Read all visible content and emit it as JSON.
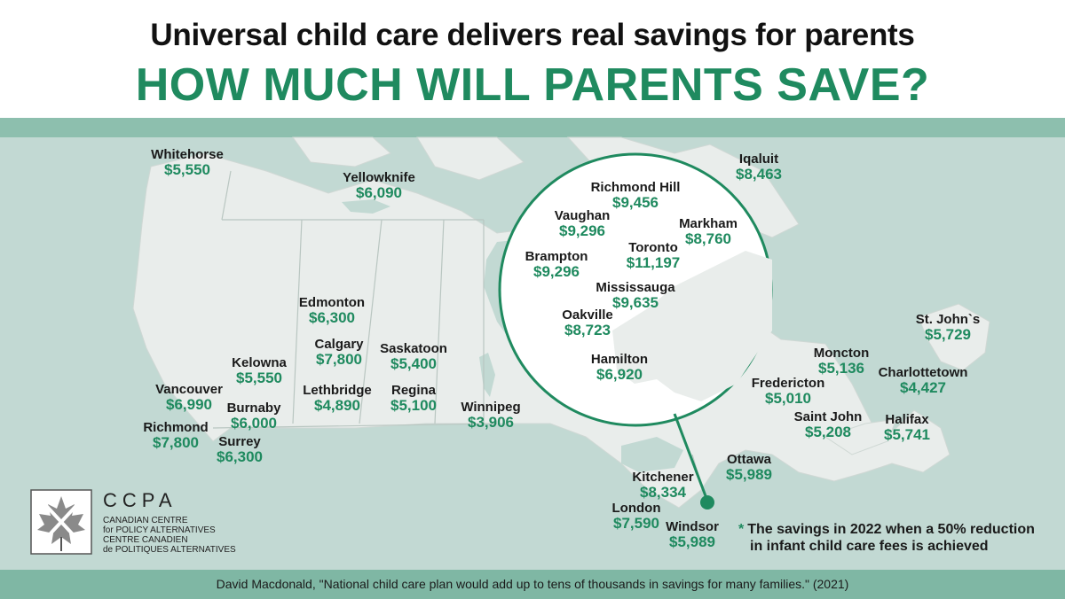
{
  "header": {
    "title": "Universal child care delivers real savings for parents",
    "subtitle": "HOW MUCH WILL PARENTS SAVE?"
  },
  "colors": {
    "accent": "#1f8a5f",
    "map_background": "#c2d9d3",
    "land": "#e8ecea",
    "footer_band": "#7fb7a4"
  },
  "cities": [
    {
      "name": "Whitehorse",
      "value": "$5,550"
    },
    {
      "name": "Yellowknife",
      "value": "$6,090"
    },
    {
      "name": "Iqaluit",
      "value": "$8,463"
    },
    {
      "name": "Edmonton",
      "value": "$6,300"
    },
    {
      "name": "Calgary",
      "value": "$7,800"
    },
    {
      "name": "Saskatoon",
      "value": "$5,400"
    },
    {
      "name": "Kelowna",
      "value": "$5,550"
    },
    {
      "name": "Lethbridge",
      "value": "$4,890"
    },
    {
      "name": "Regina",
      "value": "$5,100"
    },
    {
      "name": "Vancouver",
      "value": "$6,990"
    },
    {
      "name": "Burnaby",
      "value": "$6,000"
    },
    {
      "name": "Richmond",
      "value": "$7,800"
    },
    {
      "name": "Surrey",
      "value": "$6,300"
    },
    {
      "name": "Winnipeg",
      "value": "$3,906"
    },
    {
      "name": "St. John`s",
      "value": "$5,729"
    },
    {
      "name": "Moncton",
      "value": "$5,136"
    },
    {
      "name": "Charlottetown",
      "value": "$4,427"
    },
    {
      "name": "Fredericton",
      "value": "$5,010"
    },
    {
      "name": "Saint John",
      "value": "$5,208"
    },
    {
      "name": "Halifax",
      "value": "$5,741"
    },
    {
      "name": "Ottawa",
      "value": "$5,989"
    },
    {
      "name": "Kitchener",
      "value": "$8,334"
    },
    {
      "name": "London",
      "value": "$7,590"
    },
    {
      "name": "Windsor",
      "value": "$5,989"
    }
  ],
  "inset": {
    "cities": [
      {
        "name": "Richmond Hill",
        "value": "$9,456"
      },
      {
        "name": "Vaughan",
        "value": "$9,296"
      },
      {
        "name": "Markham",
        "value": "$8,760"
      },
      {
        "name": "Toronto",
        "value": "$11,197"
      },
      {
        "name": "Brampton",
        "value": "$9,296"
      },
      {
        "name": "Mississauga",
        "value": "$9,635"
      },
      {
        "name": "Oakville",
        "value": "$8,723"
      },
      {
        "name": "Hamilton",
        "value": "$6,920"
      }
    ]
  },
  "note": {
    "star": "*",
    "line1": "The savings in 2022 when a 50% reduction",
    "line2": "in infant child care fees is achieved"
  },
  "logo": {
    "abbr": "CCPA",
    "lines": [
      "CANADIAN CENTRE",
      "for POLICY ALTERNATIVES",
      "CENTRE CANADIEN",
      "de POLITIQUES ALTERNATIVES"
    ],
    "icon": "maple-leaf-icon"
  },
  "footer": {
    "source": "David Macdonald, \"National child care plan would add up to tens of thousands in savings for many families.\" (2021)"
  }
}
